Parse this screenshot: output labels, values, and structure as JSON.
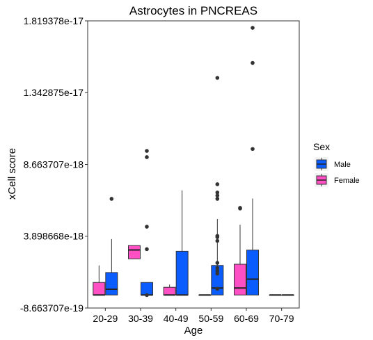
{
  "chart_data": {
    "type": "boxplot",
    "title": "Astrocytes in PNCREAS",
    "xlabel": "Age",
    "ylabel": "xCell score",
    "ylim": [
      -8.663707e-19,
      1.819378e-17
    ],
    "yticks": [
      -8.663707e-19,
      3.898668e-18,
      8.663707e-18,
      1.342875e-17,
      1.819378e-17
    ],
    "ytick_labels": [
      "-8.663707e-19",
      "3.898668e-18",
      "8.663707e-18",
      "1.342875e-17",
      "1.819378e-17"
    ],
    "categories": [
      "20-29",
      "30-39",
      "40-49",
      "50-59",
      "60-69",
      "70-79"
    ],
    "legend": {
      "title": "Sex",
      "position": "right",
      "entries": [
        "Male",
        "Female"
      ]
    },
    "colors": {
      "Male": "#0a5cff",
      "Female": "#ff4fc5"
    },
    "series": [
      {
        "name": "Female",
        "boxes": [
          {
            "category": "20-29",
            "lo": 0.0,
            "q1": 0.0,
            "median": 0.0,
            "q3": 8.3e-19,
            "hi": 1.96e-18,
            "outliers": []
          },
          {
            "category": "30-39",
            "lo": 2.4e-18,
            "q1": 2.4e-18,
            "median": 2.99e-18,
            "q3": 3.28e-18,
            "hi": 3.28e-18,
            "outliers": []
          },
          {
            "category": "40-49",
            "lo": 0.0,
            "q1": 0.0,
            "median": 0.0,
            "q3": 5.1e-19,
            "hi": 6.9e-19,
            "outliers": []
          },
          {
            "category": "50-59",
            "lo": 0.0,
            "q1": 0.0,
            "median": 0.0,
            "q3": 0.0,
            "hi": 0.0,
            "outliers": []
          },
          {
            "category": "60-69",
            "lo": 0.0,
            "q1": 0.0,
            "median": 4.6e-19,
            "q3": 2.04e-18,
            "hi": 4.66e-18,
            "outliers": [
              5.74e-18,
              5.78e-18
            ]
          },
          {
            "category": "70-79",
            "lo": 0.0,
            "q1": 0.0,
            "median": 0.0,
            "q3": 0.0,
            "hi": 0.0,
            "outliers": []
          }
        ]
      },
      {
        "name": "Male",
        "boxes": [
          {
            "category": "20-29",
            "lo": 0.0,
            "q1": 0.0,
            "median": 3.8e-19,
            "q3": 1.49e-18,
            "hi": 3.71e-18,
            "outliers": [
              6.38e-18
            ]
          },
          {
            "category": "30-39",
            "lo": 0.0,
            "q1": 0.0,
            "median": 0.0,
            "q3": 8.3e-19,
            "hi": 8.3e-19,
            "outliers": [
              -1e-20,
              3.04e-18,
              4.53e-18,
              9.15e-18,
              9.56e-18
            ]
          },
          {
            "category": "40-49",
            "lo": 0.0,
            "q1": 0.0,
            "median": 0.0,
            "q3": 2.9e-18,
            "hi": 6.94e-18,
            "outliers": []
          },
          {
            "category": "50-59",
            "lo": 0.0,
            "q1": 0.0,
            "median": 4.6e-19,
            "q3": 1.96e-18,
            "hi": 5.04e-18,
            "outliers": [
              4.1e-19,
              1.42e-18,
              1.6e-18,
              1.79e-18,
              2.13e-18,
              3.59e-18,
              3.84e-18,
              3.92e-18,
              6.38e-18,
              6.6e-18,
              6.8e-18,
              7.35e-18,
              1.441e-17
            ]
          },
          {
            "category": "60-69",
            "lo": 0.0,
            "q1": 0.0,
            "median": 1.05e-18,
            "q3": 2.98e-18,
            "hi": 6.4e-18,
            "outliers": [
              9.69e-18,
              1.54e-17,
              1.773e-17
            ]
          },
          {
            "category": "70-79",
            "lo": 0.0,
            "q1": 0.0,
            "median": 0.0,
            "q3": 0.0,
            "hi": 0.0,
            "outliers": []
          }
        ]
      }
    ]
  }
}
